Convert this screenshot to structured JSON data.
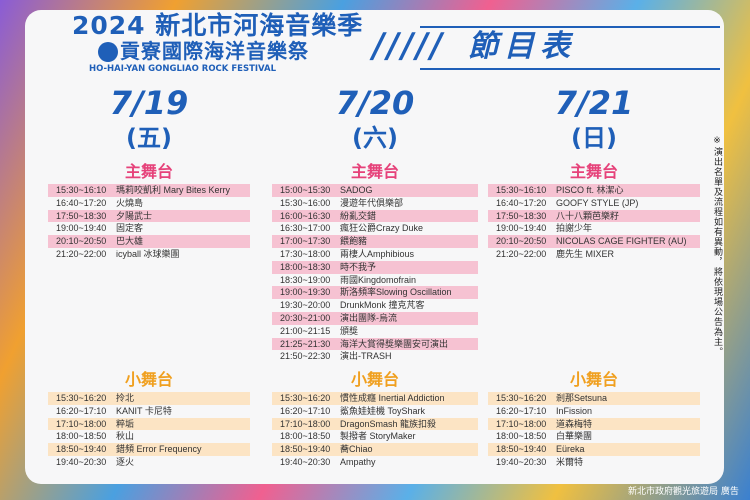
{
  "header": {
    "logo_line1": "2024 新北市河海音樂季",
    "logo_line2": "貢寮國際海洋音樂祭",
    "logo_line3": "HO-HAI-YAN GONGLIAO ROCK FESTIVAL",
    "title": "節目表",
    "brand_color": "#1f5fb8"
  },
  "main_stage_label": "主舞台",
  "small_stage_label": "小舞台",
  "days": [
    {
      "date": "7/19",
      "weekday": "(五)",
      "main": [
        [
          "15:30~16:10",
          "瑪莉咬凱利 Mary Bites Kerry"
        ],
        [
          "16:40~17:20",
          "火燒島"
        ],
        [
          "17:50~18:30",
          "夕陽武士"
        ],
        [
          "19:00~19:40",
          "固定客"
        ],
        [
          "20:10~20:50",
          "巴大雄"
        ],
        [
          "21:20~22:00",
          "icyball 冰球樂團"
        ]
      ],
      "small": [
        [
          "15:30~16:20",
          "拎北"
        ],
        [
          "16:20~17:10",
          "KANIT 卡尼特"
        ],
        [
          "17:10~18:00",
          "粹垢"
        ],
        [
          "18:00~18:50",
          "秋山"
        ],
        [
          "18:50~19:40",
          "錯頻 Error Frequency"
        ],
        [
          "19:40~20:30",
          "逐火"
        ]
      ]
    },
    {
      "date": "7/20",
      "weekday": "(六)",
      "main": [
        [
          "15:00~15:30",
          "SADOG"
        ],
        [
          "15:30~16:00",
          "漫遊年代俱樂部"
        ],
        [
          "16:00~16:30",
          "紛亂交錯"
        ],
        [
          "16:30~17:00",
          "瘋狂公爵Crazy Duke"
        ],
        [
          "17:00~17:30",
          "餵飽豬"
        ],
        [
          "17:30~18:00",
          "兩棲人Amphibious"
        ],
        [
          "18:00~18:30",
          "時不我予"
        ],
        [
          "18:30~19:00",
          "雨國Kingdomofrain"
        ],
        [
          "19:00~19:30",
          "斯洛頻率Slowing Oscillation"
        ],
        [
          "19:30~20:00",
          "DrunkMonk 撞克芃客"
        ],
        [
          "20:30~21:00",
          "演出團隊-烏流"
        ],
        [
          "21:00~21:15",
          "頒獎"
        ],
        [
          "21:25~21:30",
          "海洋大賞得獎樂團安可演出"
        ],
        [
          "21:50~22:30",
          "演出-TRASH"
        ]
      ],
      "small": [
        [
          "15:30~16:20",
          "慣性成癮 Inertial Addiction"
        ],
        [
          "16:20~17:10",
          "鯊魚娃娃機 ToyShark"
        ],
        [
          "17:10~18:00",
          "DragonSmash 龍族扣殺"
        ],
        [
          "18:00~18:50",
          "製撥者 StoryMaker"
        ],
        [
          "18:50~19:40",
          "蕎Chiao"
        ],
        [
          "19:40~20:30",
          "Ampathy"
        ]
      ]
    },
    {
      "date": "7/21",
      "weekday": "(日)",
      "main": [
        [
          "15:30~16:10",
          "PISCO ft. 林潔心"
        ],
        [
          "16:40~17:20",
          "GOOFY STYLE (JP)"
        ],
        [
          "17:50~18:30",
          "八十八顆芭樂籽"
        ],
        [
          "19:00~19:40",
          "拍謝少年"
        ],
        [
          "20:10~20:50",
          "NICOLAS CAGE FIGHTER (AU)"
        ],
        [
          "21:20~22:00",
          "鹿先生 MIXER"
        ]
      ],
      "small": [
        [
          "15:30~16:20",
          "剎那Setsuna"
        ],
        [
          "16:20~17:10",
          "InFission"
        ],
        [
          "17:10~18:00",
          "道森梅特"
        ],
        [
          "18:00~18:50",
          "白華樂團"
        ],
        [
          "18:50~19:40",
          "Eüreka"
        ],
        [
          "19:40~20:30",
          "米爾特"
        ]
      ]
    }
  ],
  "note": "※演出名單及流程如有異動，將依現場公告為主。",
  "footer": "新北市政府觀光旅遊局 廣告"
}
